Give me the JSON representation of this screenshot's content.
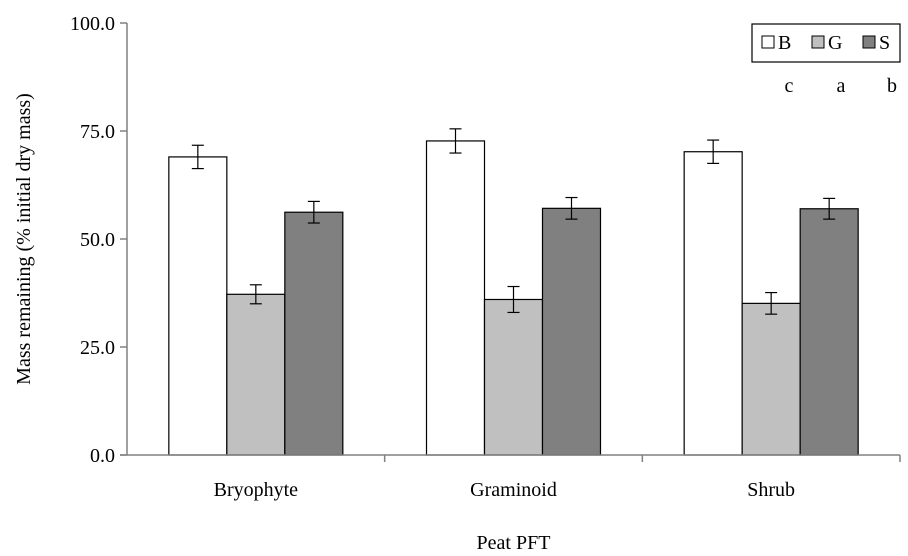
{
  "chart_data": {
    "type": "bar",
    "title": "",
    "xlabel": "Peat PFT",
    "ylabel": "Mass remaining (% initial dry mass)",
    "ylim": [
      0,
      100
    ],
    "yticks": [
      "0.0",
      "25.0",
      "50.0",
      "75.0",
      "100.0"
    ],
    "grid": false,
    "legend_position": "top-right",
    "categories": [
      "Bryophyte",
      "Graminoid",
      "Shrub"
    ],
    "series": [
      {
        "name": "B",
        "color": "#ffffff",
        "values": [
          69.0,
          72.7,
          70.2
        ],
        "errors": [
          2.7,
          2.8,
          2.7
        ]
      },
      {
        "name": "G",
        "color": "#c0c0c0",
        "values": [
          37.2,
          36.0,
          35.1
        ],
        "errors": [
          2.2,
          3.0,
          2.5
        ]
      },
      {
        "name": "S",
        "color": "#808080",
        "values": [
          56.2,
          57.1,
          57.0
        ],
        "errors": [
          2.5,
          2.5,
          2.4
        ]
      }
    ],
    "significance_letters": [
      "c",
      "a",
      "b"
    ]
  }
}
